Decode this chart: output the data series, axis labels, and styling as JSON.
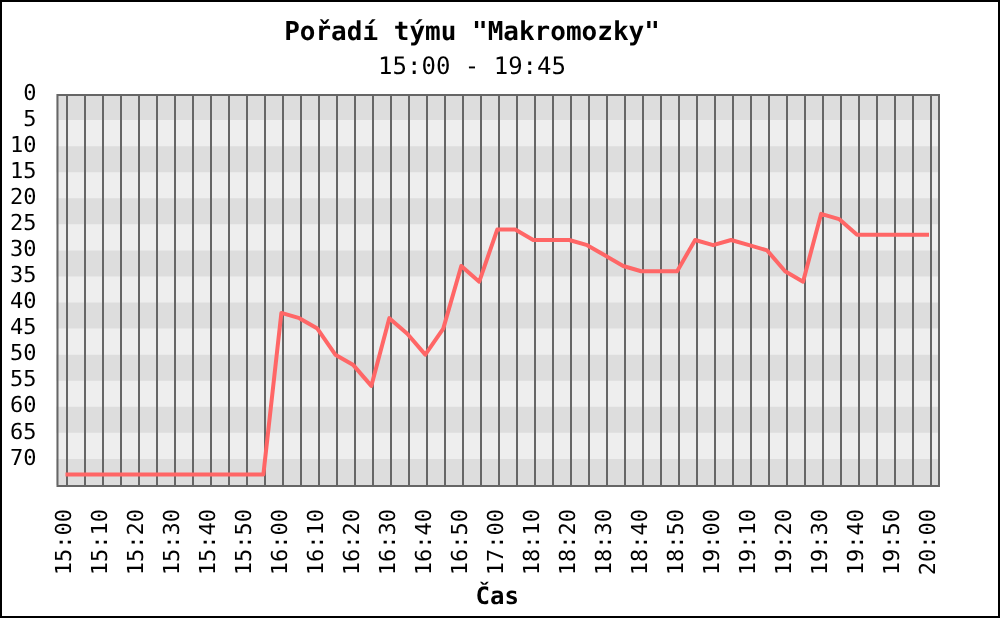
{
  "chart_data": {
    "type": "line",
    "title": "Pořadí týmu \"Makromozky\"",
    "subtitle": "15:00 - 19:45",
    "xlabel": "Čas",
    "categories": [
      "15:00",
      null,
      "15:10",
      null,
      "15:20",
      null,
      "15:30",
      null,
      "15:40",
      null,
      "15:50",
      null,
      "16:00",
      null,
      "16:10",
      null,
      "16:20",
      null,
      "16:30",
      null,
      "16:40",
      null,
      "16:50",
      null,
      "17:00",
      null,
      "18:10",
      null,
      "18:20",
      null,
      "18:30",
      null,
      "18:40",
      null,
      "18:50",
      null,
      "19:00",
      null,
      "19:10",
      null,
      "19:20",
      null,
      "19:30",
      null,
      "19:40",
      null,
      "19:50",
      null,
      "20:00"
    ],
    "series": [
      {
        "color": "#ff6666",
        "values": [
          73,
          73,
          73,
          73,
          73,
          73,
          73,
          73,
          73,
          73,
          73,
          73,
          42,
          43,
          45,
          50,
          52,
          56,
          43,
          46,
          50,
          45,
          33,
          36,
          26,
          26,
          28,
          28,
          28,
          29,
          31,
          33,
          34,
          34,
          34,
          28,
          29,
          28,
          29,
          30,
          34,
          36,
          23,
          24,
          27,
          27,
          27,
          27,
          27
        ]
      }
    ],
    "ylim": [
      75,
      0
    ],
    "yticks": [
      0,
      5,
      10,
      15,
      20,
      25,
      30,
      35,
      40,
      45,
      50,
      55,
      60,
      65,
      70
    ],
    "grid": true,
    "legend": false,
    "marker": "none",
    "line_style": "solid"
  }
}
